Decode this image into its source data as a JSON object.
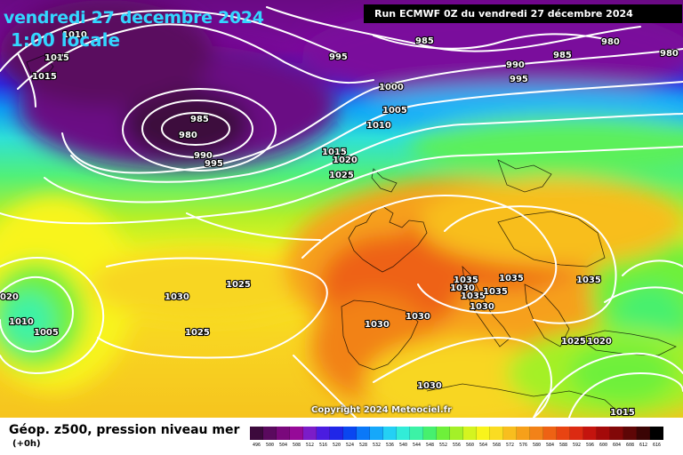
{
  "header": {
    "date": "vendredi 27 decembre 2024",
    "time": "1:00 locale",
    "run_info": "Run ECMWF 0Z du vendredi 27 décembre 2024"
  },
  "copyright": "Copyright 2024 Meteociel.fr",
  "legend": {
    "title": "Géop. z500, pression niveau mer",
    "subtitle": "(+0h)",
    "scale": [
      {
        "v": "496",
        "c": "#3c0a3c"
      },
      {
        "v": "500",
        "c": "#5a0a5e"
      },
      {
        "v": "504",
        "c": "#7a087c"
      },
      {
        "v": "508",
        "c": "#960a98"
      },
      {
        "v": "512",
        "c": "#7c1cc8"
      },
      {
        "v": "516",
        "c": "#4b1ce0"
      },
      {
        "v": "520",
        "c": "#2026e8"
      },
      {
        "v": "524",
        "c": "#0a46f0"
      },
      {
        "v": "528",
        "c": "#0a78f8"
      },
      {
        "v": "532",
        "c": "#16a8fa"
      },
      {
        "v": "536",
        "c": "#24d0f4"
      },
      {
        "v": "540",
        "c": "#32ecd8"
      },
      {
        "v": "544",
        "c": "#3cf2a6"
      },
      {
        "v": "548",
        "c": "#46f06e"
      },
      {
        "v": "552",
        "c": "#6ef03a"
      },
      {
        "v": "556",
        "c": "#a4f028"
      },
      {
        "v": "560",
        "c": "#d4f420"
      },
      {
        "v": "564",
        "c": "#f8f41c"
      },
      {
        "v": "568",
        "c": "#fadc22"
      },
      {
        "v": "572",
        "c": "#f8be1e"
      },
      {
        "v": "576",
        "c": "#f6a01a"
      },
      {
        "v": "580",
        "c": "#f28218"
      },
      {
        "v": "584",
        "c": "#ee6214"
      },
      {
        "v": "588",
        "c": "#e84412"
      },
      {
        "v": "592",
        "c": "#dc2a12"
      },
      {
        "v": "596",
        "c": "#c4140e"
      },
      {
        "v": "600",
        "c": "#a40a0a"
      },
      {
        "v": "604",
        "c": "#820808"
      },
      {
        "v": "608",
        "c": "#5e0606"
      },
      {
        "v": "612",
        "c": "#3a0404"
      },
      {
        "v": "616",
        "c": "#000000"
      }
    ]
  },
  "isobar_labels": [
    {
      "text": "1010"
    },
    {
      "text": "1015"
    },
    {
      "text": "1015"
    },
    {
      "text": "995"
    },
    {
      "text": "985"
    },
    {
      "text": "980"
    },
    {
      "text": "980"
    },
    {
      "text": "985"
    },
    {
      "text": "990"
    },
    {
      "text": "995"
    },
    {
      "text": "1000"
    },
    {
      "text": "1005"
    },
    {
      "text": "1010"
    },
    {
      "text": "985"
    },
    {
      "text": "980"
    },
    {
      "text": "990"
    },
    {
      "text": "995"
    },
    {
      "text": "1015"
    },
    {
      "text": "1020"
    },
    {
      "text": "1025"
    },
    {
      "text": "1030"
    },
    {
      "text": "1025"
    },
    {
      "text": "020"
    },
    {
      "text": "1010"
    },
    {
      "text": "1005"
    },
    {
      "text": "1025"
    },
    {
      "text": "1030"
    },
    {
      "text": "1030"
    },
    {
      "text": "1035"
    },
    {
      "text": "1030"
    },
    {
      "text": "1035"
    },
    {
      "text": "1035"
    },
    {
      "text": "1035"
    },
    {
      "text": "1030"
    },
    {
      "text": "1035"
    },
    {
      "text": "1025"
    },
    {
      "text": "1020"
    },
    {
      "text": "1030"
    },
    {
      "text": "1015"
    }
  ]
}
